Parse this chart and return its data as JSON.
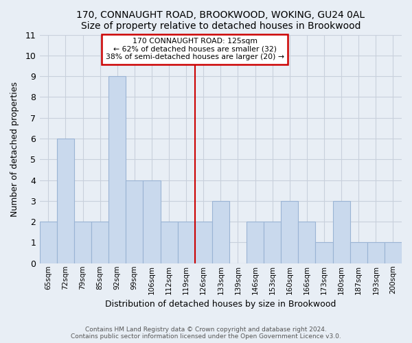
{
  "title": "170, CONNAUGHT ROAD, BROOKWOOD, WOKING, GU24 0AL",
  "subtitle": "Size of property relative to detached houses in Brookwood",
  "xlabel": "Distribution of detached houses by size in Brookwood",
  "ylabel": "Number of detached properties",
  "categories": [
    "65sqm",
    "72sqm",
    "79sqm",
    "85sqm",
    "92sqm",
    "99sqm",
    "106sqm",
    "112sqm",
    "119sqm",
    "126sqm",
    "133sqm",
    "139sqm",
    "146sqm",
    "153sqm",
    "160sqm",
    "166sqm",
    "173sqm",
    "180sqm",
    "187sqm",
    "193sqm",
    "200sqm"
  ],
  "values": [
    2,
    6,
    2,
    2,
    9,
    4,
    4,
    2,
    2,
    2,
    3,
    0,
    2,
    2,
    3,
    2,
    1,
    3,
    1,
    1,
    1
  ],
  "bar_color": "#c9d9ed",
  "bar_edge_color": "#9ab4d4",
  "ref_line_label": "170 CONNAUGHT ROAD: 125sqm",
  "annotation_line1": "← 62% of detached houses are smaller (32)",
  "annotation_line2": "38% of semi-detached houses are larger (20) →",
  "annotation_box_color": "#ffffff",
  "annotation_box_edge": "#cc0000",
  "ref_line_color": "#cc0000",
  "ylim": [
    0,
    11
  ],
  "yticks": [
    0,
    1,
    2,
    3,
    4,
    5,
    6,
    7,
    8,
    9,
    10,
    11
  ],
  "grid_color": "#c8d0dc",
  "bg_color": "#e8eef5",
  "footer1": "Contains HM Land Registry data © Crown copyright and database right 2024.",
  "footer2": "Contains public sector information licensed under the Open Government Licence v3.0."
}
